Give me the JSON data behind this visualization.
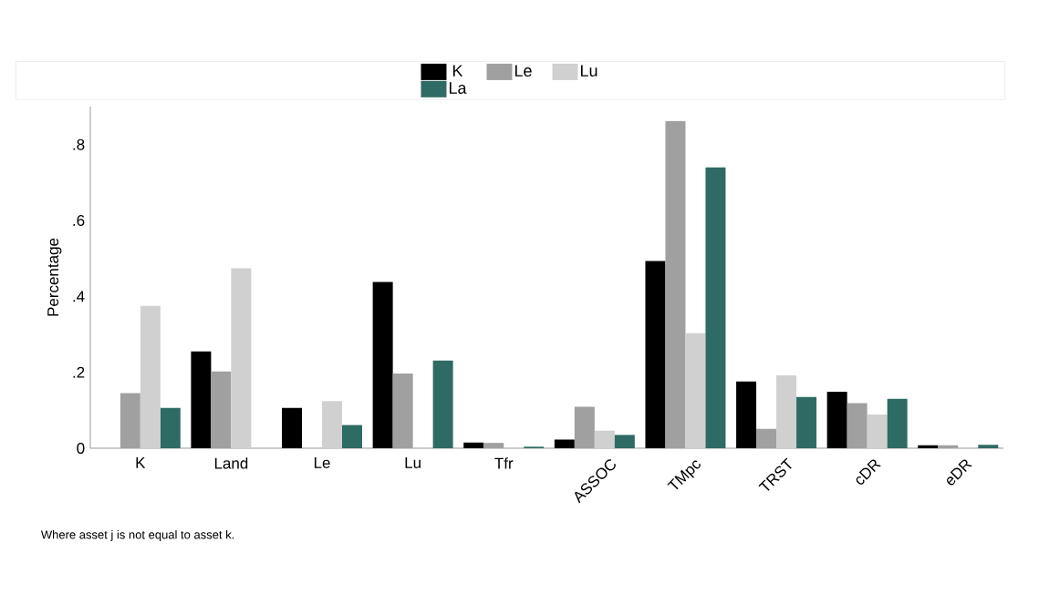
{
  "chart_data": {
    "type": "bar",
    "ylabel": "Percentage",
    "categories": [
      "K",
      "Land",
      "Le",
      "Lu",
      "Tfr",
      "ASSOC",
      "TMpc",
      "TRST",
      "cDR",
      "eDR"
    ],
    "series": [
      {
        "name": "K",
        "color": "#000000",
        "values": [
          null,
          0.255,
          0.106,
          0.438,
          0.015,
          0.023,
          0.493,
          0.176,
          0.149,
          0.008
        ]
      },
      {
        "name": "Le",
        "color": "#a0a0a0",
        "values": [
          0.145,
          0.202,
          null,
          0.197,
          0.014,
          0.109,
          0.862,
          0.051,
          0.119,
          0.008
        ]
      },
      {
        "name": "Lu",
        "color": "#d0d0d0",
        "values": [
          0.375,
          0.474,
          0.124,
          null,
          null,
          0.046,
          0.303,
          0.192,
          0.089,
          null
        ]
      },
      {
        "name": "La",
        "color": "#2e6b64",
        "values": [
          0.106,
          null,
          0.061,
          0.231,
          0.004,
          0.035,
          0.74,
          0.135,
          0.13,
          0.009
        ]
      }
    ],
    "ylim": [
      0,
      0.9
    ],
    "yticks": [
      0,
      {
        "value": 0.2,
        "label": ".2"
      },
      {
        "value": 0.4,
        "label": ".4"
      },
      {
        "value": 0.6,
        "label": ".6"
      },
      {
        "value": 0.8,
        "label": ".8"
      }
    ],
    "grid": false,
    "legend": "top",
    "annotations": [
      "Where asset j is not equal to asset k."
    ]
  }
}
